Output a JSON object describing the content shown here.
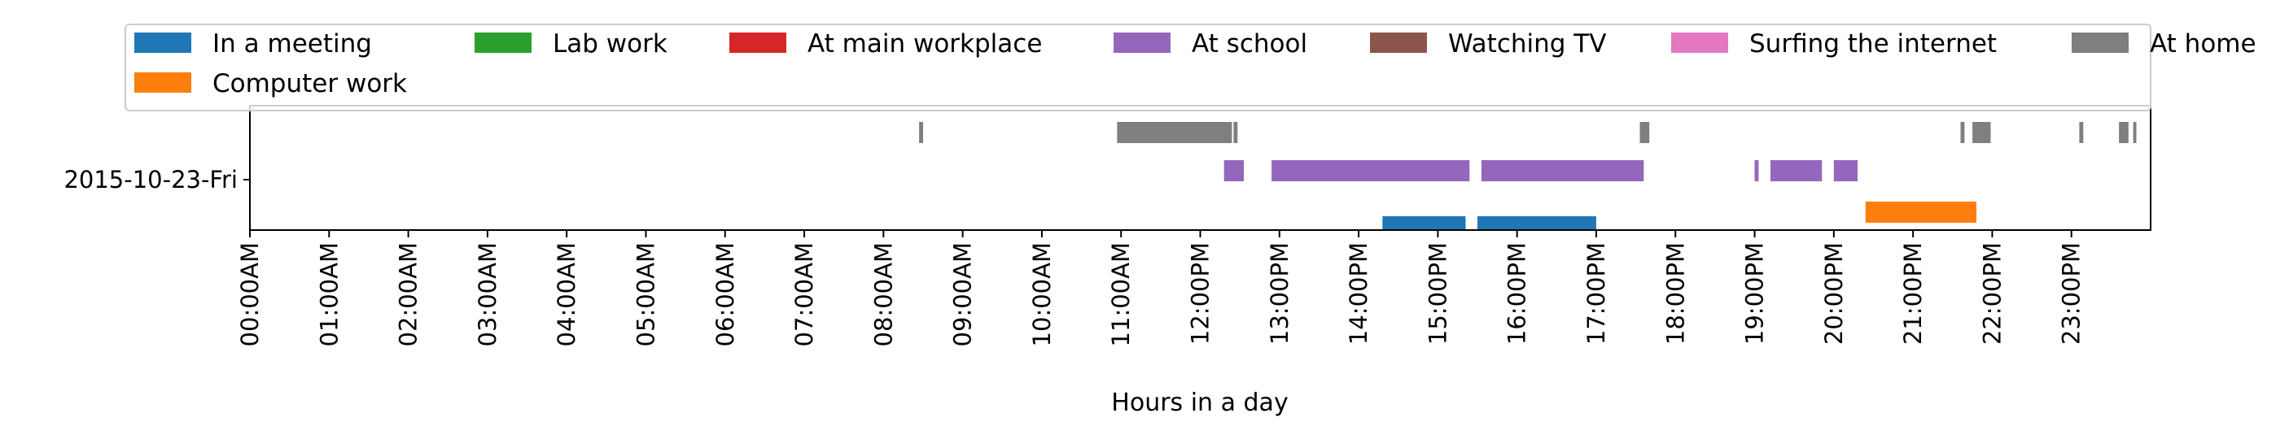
{
  "chart_data": {
    "type": "timeline",
    "xlabel": "Hours in a day",
    "xlim": [
      0,
      24
    ],
    "x_tick_labels": [
      "00:00AM",
      "01:00AM",
      "02:00AM",
      "03:00AM",
      "04:00AM",
      "05:00AM",
      "06:00AM",
      "07:00AM",
      "08:00AM",
      "09:00AM",
      "10:00AM",
      "11:00AM",
      "12:00PM",
      "13:00PM",
      "14:00PM",
      "15:00PM",
      "16:00PM",
      "17:00PM",
      "18:00PM",
      "19:00PM",
      "20:00PM",
      "21:00PM",
      "22:00PM",
      "23:00PM"
    ],
    "y_category": "2015-10-23-Fri",
    "legend_placement": "top",
    "grid": false,
    "series": [
      {
        "name": "In a meeting",
        "color": "#1f77b4",
        "intervals": [
          [
            14.3,
            15.35
          ],
          [
            15.5,
            17.0
          ]
        ]
      },
      {
        "name": "Computer work",
        "color": "#ff7f0e",
        "intervals": [
          [
            20.4,
            21.8
          ]
        ]
      },
      {
        "name": "Lab work",
        "color": "#2ca02c",
        "intervals": []
      },
      {
        "name": "At main workplace",
        "color": "#d62728",
        "intervals": []
      },
      {
        "name": "At school",
        "color": "#9467bd",
        "intervals": [
          [
            12.3,
            12.55
          ],
          [
            12.9,
            15.4
          ],
          [
            15.55,
            17.6
          ],
          [
            19.0,
            19.05
          ],
          [
            19.2,
            19.85
          ],
          [
            20.0,
            20.3
          ]
        ]
      },
      {
        "name": "Watching TV",
        "color": "#8c564b",
        "intervals": []
      },
      {
        "name": "Surfing the internet",
        "color": "#e377c2",
        "intervals": []
      },
      {
        "name": "At home",
        "color": "#7f7f7f",
        "intervals": [
          [
            8.45,
            8.5
          ],
          [
            10.95,
            12.4
          ],
          [
            12.42,
            12.47
          ],
          [
            17.55,
            17.67
          ],
          [
            21.6,
            21.65
          ],
          [
            21.75,
            21.98
          ],
          [
            23.1,
            23.15
          ],
          [
            23.6,
            23.72
          ],
          [
            23.78,
            23.82
          ]
        ]
      }
    ]
  }
}
